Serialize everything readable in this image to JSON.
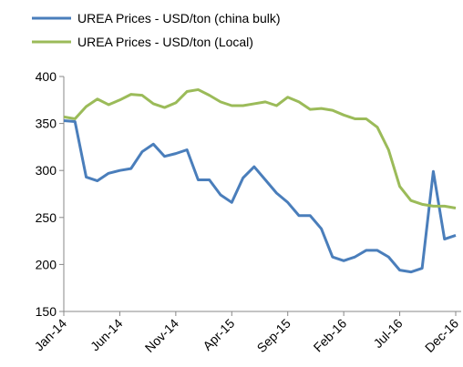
{
  "chart_data": {
    "type": "line",
    "categories": [
      "Jan-14",
      null,
      null,
      null,
      null,
      "Jun-14",
      null,
      null,
      null,
      null,
      "Nov-14",
      null,
      null,
      null,
      null,
      "Apr-15",
      null,
      null,
      null,
      null,
      "Sep-15",
      null,
      null,
      null,
      null,
      "Feb-16",
      null,
      null,
      null,
      null,
      "Jul-16",
      null,
      null,
      null,
      null,
      "Dec-16"
    ],
    "series": [
      {
        "name": "UREA Prices  - USD/ton (china bulk)",
        "color": "#4a7ebb",
        "values": [
          353,
          352,
          293,
          289,
          297,
          300,
          302,
          320,
          328,
          315,
          318,
          322,
          290,
          290,
          274,
          266,
          292,
          304,
          290,
          276,
          266,
          252,
          252,
          238,
          208,
          204,
          208,
          215,
          215,
          208,
          194,
          192,
          196,
          299,
          227,
          231
        ]
      },
      {
        "name": "UREA Prices  - USD/ton (Local)",
        "color": "#9bbb59",
        "values": [
          357,
          355,
          368,
          376,
          370,
          375,
          381,
          380,
          371,
          367,
          372,
          384,
          386,
          380,
          373,
          369,
          369,
          371,
          373,
          369,
          378,
          373,
          365,
          366,
          364,
          359,
          355,
          355,
          346,
          322,
          283,
          268,
          264,
          262,
          262,
          260
        ]
      }
    ],
    "ylim": [
      150,
      400
    ],
    "yticks": [
      150,
      200,
      250,
      300,
      350,
      400
    ],
    "legend": "top-left"
  }
}
